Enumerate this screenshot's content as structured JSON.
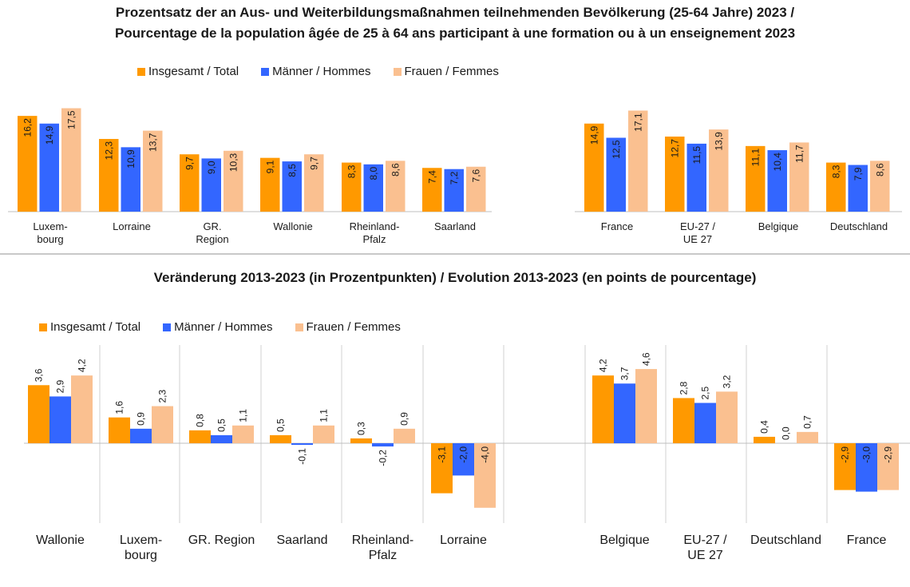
{
  "colors": {
    "total": "#FF9900",
    "men": "#3366FF",
    "women": "#FAC090"
  },
  "legend": {
    "total": "Insgesamt / Total",
    "men": "Männer / Hommes",
    "women": "Frauen / Femmes"
  },
  "chart_data": [
    {
      "type": "bar",
      "title": "Prozentsatz der an Aus- und Weiterbildungsmaßnahmen teilnehmenden Bevölkerung (25-64 Jahre) 2023 /",
      "subtitle": "Pourcentage de la population âgée de 25 à 64 ans participant à une formation ou à un enseignement 2023",
      "categories": [
        "Luxem-\nbourg",
        "Lorraine",
        "GR.\nRegion",
        "Wallonie",
        "Rheinland-\nPfalz",
        "Saarland",
        "France",
        "EU-27 /\nUE 27",
        "Belgique",
        "Deutschland"
      ],
      "value_labels": [
        [
          "16,2",
          "14,9",
          "17,5"
        ],
        [
          "12,3",
          "10,9",
          "13,7"
        ],
        [
          "9,7",
          "9,0",
          "10,3"
        ],
        [
          "9,1",
          "8,5",
          "9,7"
        ],
        [
          "8,3",
          "8,0",
          "8,6"
        ],
        [
          "7,4",
          "7,2",
          "7,6"
        ],
        [
          "14,9",
          "12,5",
          "17,1"
        ],
        [
          "12,7",
          "11,5",
          "13,9"
        ],
        [
          "11,1",
          "10,4",
          "11,7"
        ],
        [
          "8,3",
          "7,9",
          "8,6"
        ]
      ],
      "series": [
        {
          "name": "Insgesamt / Total",
          "values": [
            16.2,
            12.3,
            9.7,
            9.1,
            8.3,
            7.4,
            14.9,
            12.7,
            11.1,
            8.3
          ]
        },
        {
          "name": "Männer / Hommes",
          "values": [
            14.9,
            10.9,
            9.0,
            8.5,
            8.0,
            7.2,
            12.5,
            11.5,
            10.4,
            7.9
          ]
        },
        {
          "name": "Frauen / Femmes",
          "values": [
            17.5,
            13.7,
            10.3,
            9.7,
            8.6,
            7.6,
            17.1,
            13.9,
            11.7,
            8.6
          ]
        }
      ],
      "ylim": [
        0,
        18
      ],
      "grid": false,
      "legend_position": "top-left"
    },
    {
      "type": "bar",
      "title": "Veränderung 2013-2023 (in Prozentpunkten) / Evolution 2013-2023 (en points de pourcentage)",
      "categories": [
        "Wallonie",
        "Luxem-\nbourg",
        "GR. Region",
        "Saarland",
        "Rheinland-\nPfalz",
        "Lorraine",
        "Belgique",
        "EU-27 /\nUE 27",
        "Deutschland",
        "France"
      ],
      "value_labels": [
        [
          "3,6",
          "2,9",
          "4,2"
        ],
        [
          "1,6",
          "0,9",
          "2,3"
        ],
        [
          "0,8",
          "0,5",
          "1,1"
        ],
        [
          "0,5",
          "-0,1",
          "1,1"
        ],
        [
          "0,3",
          "-0,2",
          "0,9"
        ],
        [
          "-3,1",
          "-2,0",
          "-4,0"
        ],
        [
          "4,2",
          "3,7",
          "4,6"
        ],
        [
          "2,8",
          "2,5",
          "3,2"
        ],
        [
          "0,4",
          "0,0",
          "0,7"
        ],
        [
          "-2,9",
          "-3,0",
          "-2,9"
        ]
      ],
      "series": [
        {
          "name": "Insgesamt / Total",
          "values": [
            3.6,
            1.6,
            0.8,
            0.5,
            0.3,
            -3.1,
            4.2,
            2.8,
            0.4,
            -2.9
          ]
        },
        {
          "name": "Männer / Hommes",
          "values": [
            2.9,
            0.9,
            0.5,
            -0.1,
            -0.2,
            -2.0,
            3.7,
            2.5,
            0.0,
            -3.0
          ]
        },
        {
          "name": "Frauen / Femmes",
          "values": [
            4.2,
            2.3,
            1.1,
            1.1,
            0.9,
            -4.0,
            4.6,
            3.2,
            0.7,
            -2.9
          ]
        }
      ],
      "ylim": [
        -5,
        6
      ],
      "grid": false,
      "legend_position": "top-left"
    }
  ]
}
